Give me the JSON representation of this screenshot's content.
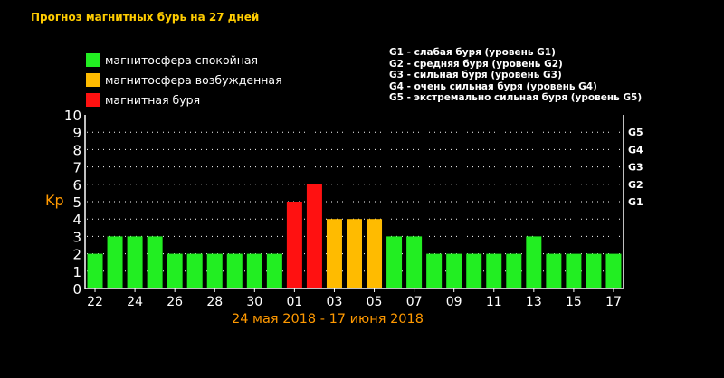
{
  "title": "Прогноз магнитных бурь на 27 дней",
  "legend": [
    {
      "label": "магнитосфера спокойная",
      "color": "#22ee22"
    },
    {
      "label": "магнитосфера возбужденная",
      "color": "#ffbb00"
    },
    {
      "label": "магнитная буря",
      "color": "#ff1111"
    }
  ],
  "g_levels": [
    "G1 - слабая буря (уровень G1)",
    "G2 - средняя буря (уровень G2)",
    "G3 - сильная буря (уровень G3)",
    "G4 - очень сильная буря (уровень G4)",
    "G5 - экстремально сильная буря (уровень G5)"
  ],
  "date_range": "24 мая 2018 - 17 июня 2018",
  "chart_data": {
    "type": "bar",
    "ylabel": "Kp",
    "ylim": [
      0,
      10
    ],
    "yticks": [
      0,
      1,
      2,
      3,
      4,
      5,
      6,
      7,
      8,
      9,
      10
    ],
    "right_ticks": [
      {
        "value": 5,
        "label": "G1"
      },
      {
        "value": 6,
        "label": "G2"
      },
      {
        "value": 7,
        "label": "G3"
      },
      {
        "value": 8,
        "label": "G4"
      },
      {
        "value": 9,
        "label": "G5"
      }
    ],
    "x_tick_labels": [
      "22",
      "24",
      "26",
      "28",
      "30",
      "01",
      "03",
      "05",
      "07",
      "09",
      "11",
      "13",
      "15",
      "17"
    ],
    "values": [
      2,
      3,
      3,
      3,
      2,
      2,
      2,
      2,
      2,
      2,
      5,
      6,
      4,
      4,
      4,
      3,
      3,
      2,
      2,
      2,
      2,
      2,
      3,
      2,
      2,
      2,
      2
    ],
    "colors": {
      "quiet": "#22ee22",
      "unsettled": "#ffbb00",
      "storm": "#ff1111"
    },
    "grid": "dotted"
  }
}
